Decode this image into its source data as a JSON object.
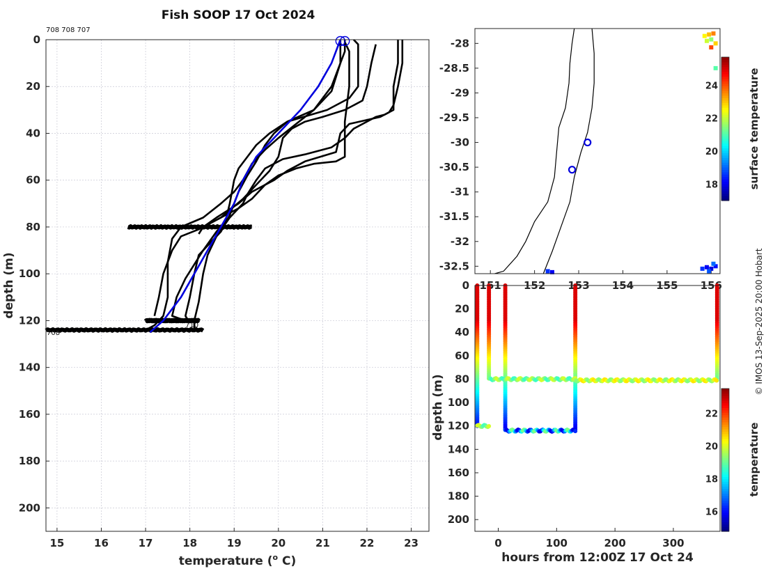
{
  "title": "Fish SOOP 17 Oct 2024",
  "profile_ids": "708 708 707",
  "markers": {
    "left_tag": "708",
    "right_tag": "710"
  },
  "credit": "© IMOS 13-Sep-2025 20:00 Hobart",
  "colors": {
    "black": "#000000",
    "blue": "#0000dd",
    "coast": "#000000"
  },
  "chart_data": [
    {
      "type": "line",
      "name": "temperature-depth-profiles",
      "xlabel": "temperature (o C)",
      "ylabel": "depth (m)",
      "xlim": [
        14.75,
        23.4
      ],
      "ylim": [
        210,
        0
      ],
      "xticks": [
        15,
        16,
        17,
        18,
        19,
        20,
        21,
        22,
        23
      ],
      "yticks": [
        0,
        20,
        40,
        60,
        80,
        100,
        120,
        140,
        160,
        180,
        200
      ],
      "grid": true,
      "series": [
        {
          "name": "profile-1",
          "color": "#000000",
          "points": [
            [
              21.5,
              0
            ],
            [
              21.5,
              5
            ],
            [
              21.2,
              20
            ],
            [
              20.8,
              30
            ],
            [
              20.2,
              35
            ],
            [
              19.8,
              40
            ],
            [
              19.5,
              45
            ],
            [
              19.3,
              50
            ],
            [
              19.1,
              55
            ],
            [
              19.0,
              60
            ],
            [
              18.9,
              70
            ],
            [
              18.8,
              78
            ],
            [
              18.6,
              82
            ],
            [
              18.3,
              90
            ],
            [
              17.9,
              102
            ],
            [
              17.7,
              110
            ],
            [
              17.6,
              118
            ],
            [
              17.9,
              120
            ]
          ]
        },
        {
          "name": "profile-2",
          "color": "#000000",
          "points": [
            [
              21.7,
              0
            ],
            [
              21.8,
              2
            ],
            [
              21.8,
              20
            ],
            [
              21.6,
              25
            ],
            [
              21.1,
              30
            ],
            [
              20.2,
              35
            ],
            [
              19.9,
              40
            ],
            [
              19.7,
              45
            ],
            [
              19.5,
              52
            ],
            [
              19.3,
              58
            ],
            [
              19.1,
              65
            ],
            [
              19.0,
              70
            ],
            [
              18.9,
              75
            ],
            [
              18.7,
              82
            ],
            [
              18.4,
              88
            ],
            [
              18.2,
              92
            ],
            [
              18.1,
              100
            ],
            [
              18.0,
              110
            ],
            [
              17.9,
              118
            ],
            [
              18.0,
              121
            ]
          ]
        },
        {
          "name": "profile-3",
          "color": "#000000",
          "points": [
            [
              21.4,
              0
            ],
            [
              21.4,
              10
            ],
            [
              21.2,
              22
            ],
            [
              20.8,
              30
            ],
            [
              20.4,
              36
            ],
            [
              20.0,
              42
            ],
            [
              19.7,
              47
            ],
            [
              19.4,
              53
            ],
            [
              19.2,
              60
            ],
            [
              19.0,
              65
            ],
            [
              18.7,
              70
            ],
            [
              18.3,
              76
            ],
            [
              17.8,
              80
            ],
            [
              17.6,
              85
            ],
            [
              17.5,
              95
            ],
            [
              17.5,
              110
            ],
            [
              17.4,
              118
            ],
            [
              17.2,
              122
            ],
            [
              17.0,
              124
            ]
          ]
        },
        {
          "name": "profile-4",
          "color": "#000000",
          "points": [
            [
              22.2,
              2
            ],
            [
              22.1,
              10
            ],
            [
              22.0,
              20
            ],
            [
              21.9,
              26
            ],
            [
              21.5,
              30
            ],
            [
              21.0,
              33
            ],
            [
              20.6,
              35
            ],
            [
              20.3,
              38
            ],
            [
              20.1,
              42
            ],
            [
              20.0,
              50
            ],
            [
              19.8,
              56
            ],
            [
              19.5,
              62
            ],
            [
              19.2,
              68
            ],
            [
              18.7,
              76
            ],
            [
              18.3,
              80
            ],
            [
              18.2,
              81
            ],
            [
              17.8,
              84
            ],
            [
              17.6,
              90
            ],
            [
              17.4,
              100
            ],
            [
              17.3,
              110
            ],
            [
              17.2,
              118
            ]
          ]
        },
        {
          "name": "profile-5",
          "color": "#000000",
          "points": [
            [
              22.7,
              0
            ],
            [
              22.7,
              10
            ],
            [
              22.6,
              20
            ],
            [
              22.6,
              30
            ],
            [
              22.3,
              33
            ],
            [
              21.6,
              36
            ],
            [
              21.4,
              40
            ],
            [
              21.3,
              48
            ],
            [
              20.6,
              52
            ],
            [
              20.2,
              56
            ],
            [
              19.9,
              60
            ],
            [
              19.4,
              65
            ],
            [
              19.1,
              70
            ],
            [
              18.6,
              76
            ],
            [
              18.3,
              80
            ],
            [
              18.2,
              83
            ]
          ]
        },
        {
          "name": "profile-6",
          "color": "#000000",
          "points": [
            [
              22.8,
              0
            ],
            [
              22.8,
              10
            ],
            [
              22.7,
              20
            ],
            [
              22.6,
              28
            ],
            [
              22.5,
              31
            ],
            [
              22.4,
              32
            ],
            [
              22.2,
              33
            ],
            [
              21.7,
              38
            ],
            [
              21.5,
              42
            ],
            [
              21.2,
              46
            ],
            [
              20.6,
              49
            ],
            [
              20.1,
              51
            ],
            [
              19.7,
              55
            ],
            [
              19.5,
              60
            ],
            [
              19.3,
              66
            ],
            [
              19.2,
              70
            ],
            [
              18.9,
              76
            ],
            [
              18.6,
              84
            ],
            [
              18.4,
              92
            ],
            [
              18.3,
              100
            ],
            [
              18.2,
              112
            ],
            [
              18.1,
              120
            ],
            [
              18.1,
              124
            ]
          ]
        },
        {
          "name": "profile-7",
          "color": "#000000",
          "points": [
            [
              21.5,
              1
            ],
            [
              21.6,
              5
            ],
            [
              21.6,
              20
            ],
            [
              21.5,
              35
            ],
            [
              21.5,
              45
            ],
            [
              21.5,
              50
            ],
            [
              21.3,
              52
            ],
            [
              20.8,
              53
            ],
            [
              20.4,
              55
            ],
            [
              20.0,
              58
            ],
            [
              19.7,
              62
            ],
            [
              19.4,
              68
            ],
            [
              19.1,
              72
            ],
            [
              18.7,
              76
            ],
            [
              18.3,
              80
            ]
          ]
        },
        {
          "name": "mean-profile",
          "color": "#0000dd",
          "points": [
            [
              21.4,
              0
            ],
            [
              21.2,
              10
            ],
            [
              20.9,
              20
            ],
            [
              20.5,
              30
            ],
            [
              20.0,
              40
            ],
            [
              19.5,
              50
            ],
            [
              19.2,
              60
            ],
            [
              19.0,
              70
            ],
            [
              18.7,
              80
            ],
            [
              18.4,
              90
            ],
            [
              18.1,
              100
            ],
            [
              17.8,
              110
            ],
            [
              17.4,
              120
            ],
            [
              17.1,
              125
            ]
          ]
        }
      ],
      "horizontal_smears": [
        {
          "depth": 80,
          "x_from": 16.6,
          "x_to": 19.4
        },
        {
          "depth": 120,
          "x_from": 17.0,
          "x_to": 18.2
        },
        {
          "depth": 124,
          "x_from": 14.75,
          "x_to": 18.3
        }
      ],
      "start_markers": [
        [
          21.4,
          0
        ],
        [
          21.5,
          0
        ]
      ]
    },
    {
      "type": "map",
      "name": "surface-temperature-map",
      "colorbar_label": "surface temperature",
      "xlim": [
        150.65,
        156.2
      ],
      "ylim": [
        -32.65,
        -27.7
      ],
      "xticks": [
        151,
        152,
        153,
        154,
        155,
        156
      ],
      "yticks": [
        -28,
        -28.5,
        -29,
        -29.5,
        -30,
        -30.5,
        -31,
        -31.5,
        -32,
        -32.5
      ],
      "ytick_labels": [
        "-28",
        "-28.5",
        "-29",
        "-29.5",
        "-30",
        "-30.5",
        "-31",
        "-31.5",
        "-32",
        "-32.5"
      ],
      "colorbar_range": [
        17,
        25.7
      ],
      "colorbar_ticks": [
        18,
        20,
        22,
        24
      ],
      "coast_mainland": [
        [
          152.9,
          -27.7
        ],
        [
          152.85,
          -28.0
        ],
        [
          152.8,
          -28.4
        ],
        [
          152.78,
          -28.8
        ],
        [
          152.7,
          -29.3
        ],
        [
          152.55,
          -29.7
        ],
        [
          152.5,
          -30.2
        ],
        [
          152.45,
          -30.7
        ],
        [
          152.3,
          -31.2
        ],
        [
          152.0,
          -31.6
        ],
        [
          151.8,
          -32.0
        ],
        [
          151.6,
          -32.3
        ],
        [
          151.3,
          -32.6
        ],
        [
          151.1,
          -32.65
        ]
      ],
      "coast_shelf": [
        [
          153.3,
          -27.7
        ],
        [
          153.35,
          -28.2
        ],
        [
          153.35,
          -28.8
        ],
        [
          153.3,
          -29.3
        ],
        [
          153.2,
          -29.8
        ],
        [
          153.05,
          -30.2
        ],
        [
          152.9,
          -30.7
        ],
        [
          152.8,
          -31.2
        ],
        [
          152.6,
          -31.7
        ],
        [
          152.4,
          -32.2
        ],
        [
          152.2,
          -32.65
        ]
      ],
      "station_markers": [
        [
          153.2,
          -30.0
        ],
        [
          152.85,
          -30.55
        ]
      ],
      "sst_pixels": [
        {
          "lon": 155.85,
          "lat": -27.85,
          "value": 22.5
        },
        {
          "lon": 155.95,
          "lat": -27.82,
          "value": 23.0
        },
        {
          "lon": 156.05,
          "lat": -27.8,
          "value": 23.5
        },
        {
          "lon": 155.9,
          "lat": -27.95,
          "value": 22.0
        },
        {
          "lon": 156.0,
          "lat": -27.92,
          "value": 21.5
        },
        {
          "lon": 156.1,
          "lat": -28.0,
          "value": 22.8
        },
        {
          "lon": 156.0,
          "lat": -28.08,
          "value": 24.0
        },
        {
          "lon": 156.1,
          "lat": -28.5,
          "value": 21.0
        },
        {
          "lon": 155.8,
          "lat": -32.55,
          "value": 18.5
        },
        {
          "lon": 155.9,
          "lat": -32.52,
          "value": 18.0
        },
        {
          "lon": 156.0,
          "lat": -32.55,
          "value": 17.8
        },
        {
          "lon": 156.1,
          "lat": -32.5,
          "value": 18.2
        },
        {
          "lon": 155.95,
          "lat": -32.6,
          "value": 18.8
        },
        {
          "lon": 156.05,
          "lat": -32.45,
          "value": 19.0
        },
        {
          "lon": 152.3,
          "lat": -32.6,
          "value": 18.5
        },
        {
          "lon": 152.4,
          "lat": -32.62,
          "value": 18.0
        }
      ]
    },
    {
      "type": "scatter",
      "name": "depth-time-section",
      "xlabel": "hours from 12:00Z 17 Oct 24",
      "ylabel": "depth (m)",
      "colorbar_label": "temperature",
      "xlim": [
        -40,
        380
      ],
      "ylim": [
        210,
        0
      ],
      "xticks": [
        0,
        100,
        200,
        300
      ],
      "yticks": [
        0,
        20,
        40,
        60,
        80,
        100,
        120,
        140,
        160,
        180,
        200
      ],
      "colorbar_range": [
        14.8,
        23.5
      ],
      "colorbar_ticks": [
        16,
        18,
        20,
        22
      ],
      "casts": [
        {
          "hour": -36,
          "top": 0,
          "bottom": 120
        },
        {
          "hour": -16,
          "top": 0,
          "bottom": 80
        },
        {
          "hour": 12,
          "top": 0,
          "bottom": 124
        },
        {
          "hour": 132,
          "top": 0,
          "bottom": 124
        },
        {
          "hour": 375,
          "top": 0,
          "bottom": 81
        }
      ],
      "tows": [
        {
          "from": -36,
          "to": -16,
          "depth": 120,
          "value": 19.3
        },
        {
          "from": -16,
          "to": 132,
          "depth": 80,
          "value": 19.2
        },
        {
          "from": 132,
          "to": 375,
          "depth": 81,
          "value": 19.8
        },
        {
          "from": 12,
          "to": 132,
          "depth": 124,
          "value": 17.4
        }
      ]
    }
  ]
}
